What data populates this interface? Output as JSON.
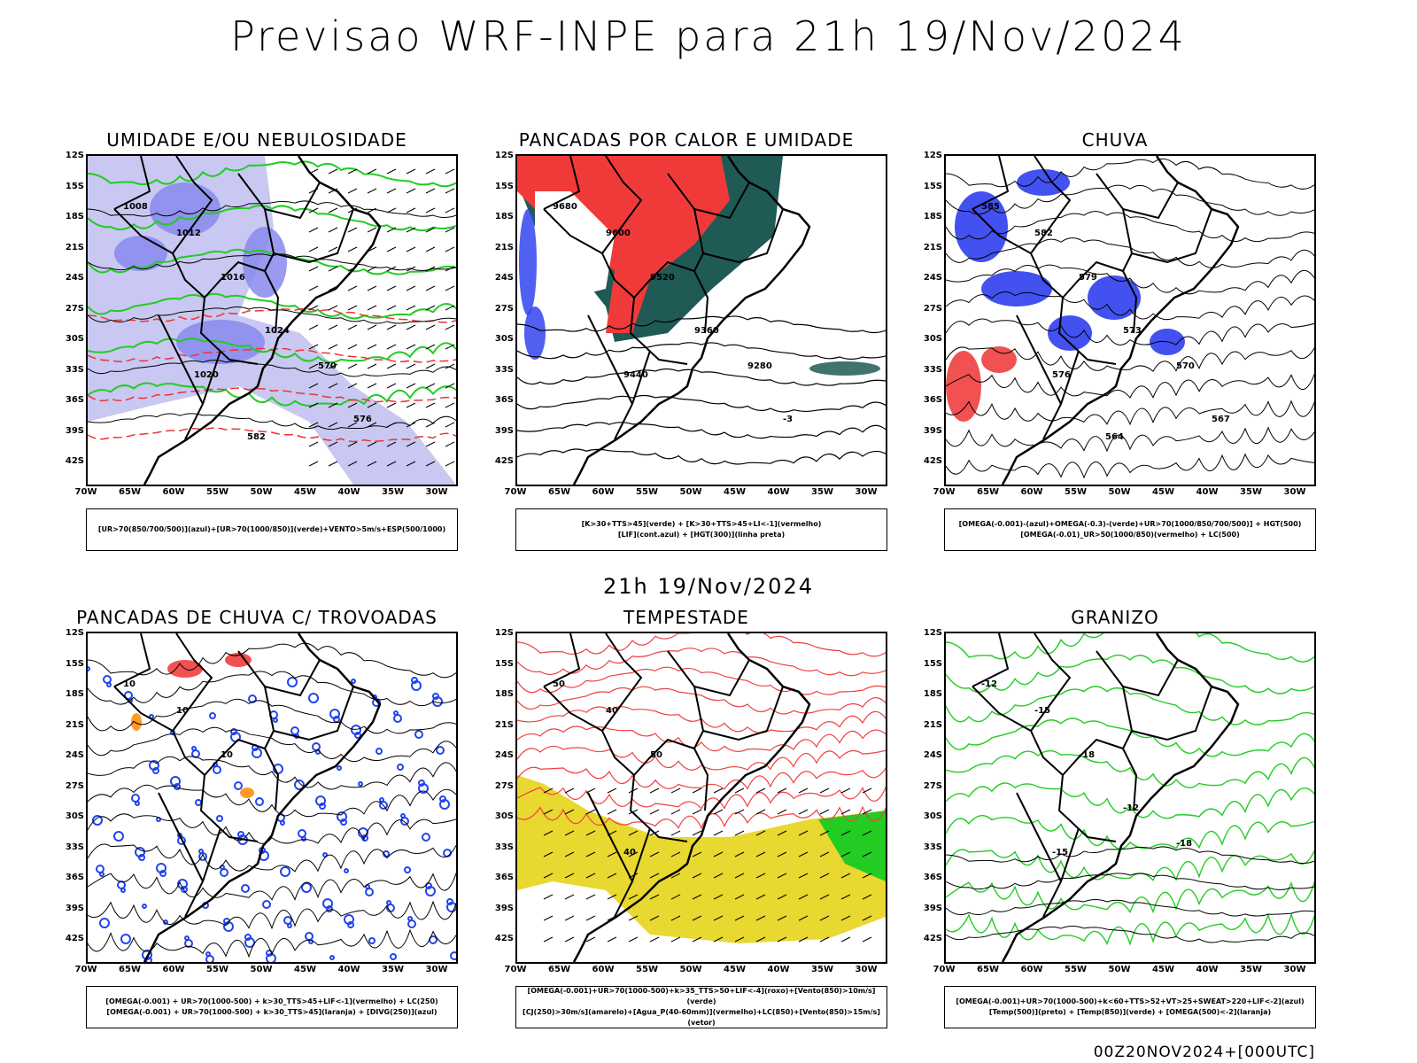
{
  "title": "Previsao WRF-INPE  para 21h 19/Nov/2024",
  "mid_date": "21h 19/Nov/2024",
  "footer": "00Z20NOV2024+[000UTC]",
  "axes": {
    "lat": [
      "12S",
      "15S",
      "18S",
      "21S",
      "24S",
      "27S",
      "30S",
      "33S",
      "36S",
      "39S",
      "42S"
    ],
    "lon": [
      "70W",
      "65W",
      "60W",
      "55W",
      "50W",
      "45W",
      "40W",
      "35W",
      "30W"
    ]
  },
  "panels": [
    {
      "title": "UMIDADE E/OU NEBULOSIDADE",
      "legend": [
        "[UR>70(850/700/500)](azul)+[UR>70(1000/850)](verde)+VENTO>5m/s+ESP(500/1000)"
      ],
      "labels": [
        "1008",
        "1012",
        "1016",
        "1020",
        "1024",
        "570",
        "576",
        "582"
      ],
      "colors": {
        "blue": "#8888ee",
        "green": "#22cc22",
        "red": "#ee3333"
      }
    },
    {
      "title": "PANCADAS POR CALOR E UMIDADE",
      "legend": [
        "[K>30+TTS>45](verde) + [K>30+TTS>45+LI<-1](vermelho)",
        "[LIF](cont.azul) + [HGT(300)](linha preta)"
      ],
      "labels": [
        "9680",
        "9600",
        "9520",
        "9440",
        "9360",
        "9280",
        "-3"
      ],
      "colors": {
        "green": "#1f5a55",
        "red": "#f03a3a",
        "blue": "#3344ee"
      }
    },
    {
      "title": "CHUVA",
      "legend": [
        "[OMEGA(-0.001)-(azul)+OMEGA(-0.3)-(verde)+UR>70(1000/850/700/500)] + HGT(500)",
        "[OMEGA(-0.01)_UR>50(1000/850)(vermelho) + LC(500)"
      ],
      "labels": [
        "585",
        "582",
        "579",
        "576",
        "573",
        "570",
        "567",
        "564"
      ],
      "colors": {
        "blue": "#2233ee",
        "red": "#ee3333"
      }
    },
    {
      "title": "PANCADAS DE CHUVA C/ TROVOADAS",
      "legend": [
        "[OMEGA(-0.001) + UR>70(1000-500) + k>30_TTS>45+LIF<-1](vermelho) + LC(250)",
        "[OMEGA(-0.001) + UR>70(1000-500) + k>30_TTS>45](laranja) + [DIVG(250)](azul)"
      ],
      "labels": [
        "10",
        "10",
        "10"
      ],
      "colors": {
        "blue": "#2244ee",
        "red": "#ee3333",
        "orange": "#ff8800"
      }
    },
    {
      "title": "TEMPESTADE",
      "legend": [
        "[OMEGA(-0.001)+UR>70(1000-500)+k>35_TTS>50+LIF<-4](roxo)+[Vento(850)>10m/s](verde)",
        "[CJ(250)>30m/s](amarelo)+[Agua_P(40-60mm)](vermelho)+LC(850)+[Vento(850)>15m/s](vetor)"
      ],
      "labels": [
        "50",
        "40",
        "50",
        "40"
      ],
      "colors": {
        "yellow": "#e8d830",
        "red": "#f04040",
        "green": "#22cc22"
      }
    },
    {
      "title": "GRANIZO",
      "legend": [
        "[OMEGA(-0.001)+UR>70(1000-500)+k<60+TTS>52+VT>25+SWEAT>220+LIF<-2](azul)",
        "[Temp(500)](preto) + [Temp(850)](verde) + [OMEGA(500)<-2](laranja)"
      ],
      "labels": [
        "-12",
        "-15",
        "-18",
        "-15",
        "-12",
        "-18"
      ],
      "colors": {
        "green": "#22cc22"
      }
    }
  ]
}
